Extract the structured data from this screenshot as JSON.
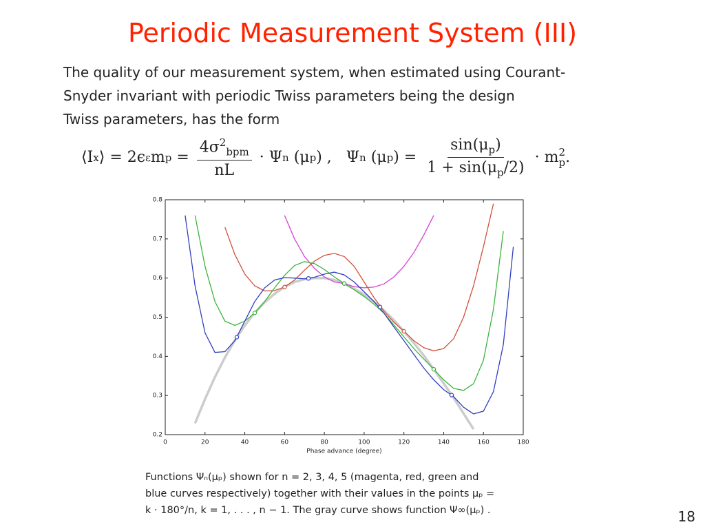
{
  "title": "Periodic Measurement System (III)",
  "paragraph": [
    "The quality of our measurement system, when estimated using Courant-",
    "Snyder invariant with periodic Twiss parameters being the design",
    "Twiss parameters, has the form"
  ],
  "formula": [
    "⟨I",
    "x",
    "⟩ = 2ϵ",
    "ε",
    "m",
    "p",
    " = ",
    "4σ",
    "2",
    "bpm",
    "nL",
    " · Ψ",
    "n",
    " (μ",
    "p",
    ") ,   Ψ",
    "n",
    " (μ",
    "p",
    ") = ",
    "sin(μ",
    "p",
    ")",
    "1 + sin(μ",
    "p",
    "/2)",
    " · m",
    "2",
    "p",
    "."
  ],
  "chart_data": {
    "type": "line",
    "xlabel": "Phase advance (degree)",
    "x": [
      0,
      5,
      10,
      15,
      20,
      25,
      30,
      35,
      40,
      45,
      50,
      55,
      60,
      65,
      70,
      75,
      80,
      85,
      90,
      95,
      100,
      105,
      110,
      115,
      120,
      125,
      130,
      135,
      140,
      145,
      150,
      155,
      160,
      165,
      170,
      175,
      180
    ],
    "xlim": [
      0,
      180
    ],
    "xticks": [
      0,
      20,
      40,
      60,
      80,
      100,
      120,
      140,
      160,
      180
    ],
    "ylim": [
      0.2,
      0.8
    ],
    "yticks": [
      0.2,
      0.3,
      0.4,
      0.5,
      0.6,
      0.7,
      0.8
    ],
    "limit_curve": {
      "color": "#cccccc",
      "values": [
        null,
        null,
        null,
        0.229,
        0.291,
        0.347,
        0.397,
        0.441,
        0.479,
        0.511,
        0.538,
        0.56,
        0.577,
        0.59,
        0.597,
        0.6,
        0.6,
        0.595,
        0.586,
        0.573,
        0.558,
        0.539,
        0.517,
        0.492,
        0.464,
        0.434,
        0.402,
        0.367,
        0.331,
        0.294,
        0.254,
        0.214,
        null,
        null,
        null,
        null,
        null
      ]
    },
    "series": [
      {
        "color": "#d63fd6",
        "values": [
          null,
          null,
          null,
          null,
          null,
          null,
          null,
          null,
          null,
          null,
          null,
          null,
          0.76,
          0.7,
          0.655,
          0.625,
          0.603,
          0.59,
          0.586,
          0.578,
          0.575,
          0.577,
          0.585,
          0.603,
          0.63,
          0.665,
          0.71,
          0.76,
          null,
          null,
          null,
          null,
          null,
          null,
          null,
          null,
          null
        ]
      },
      {
        "color": "#d0503a",
        "values": [
          null,
          null,
          null,
          null,
          null,
          null,
          0.73,
          0.66,
          0.61,
          0.58,
          0.567,
          0.568,
          0.577,
          0.595,
          0.62,
          0.643,
          0.658,
          0.663,
          0.655,
          0.63,
          0.59,
          0.55,
          0.515,
          0.487,
          0.464,
          0.44,
          0.422,
          0.414,
          0.42,
          0.445,
          0.5,
          0.58,
          0.68,
          0.79,
          null,
          null,
          null
        ]
      },
      {
        "color": "#3ab53a",
        "values": [
          null,
          null,
          null,
          0.76,
          0.63,
          0.54,
          0.49,
          0.479,
          0.49,
          0.511,
          0.54,
          0.575,
          0.607,
          0.632,
          0.642,
          0.637,
          0.622,
          0.603,
          0.586,
          0.57,
          0.553,
          0.533,
          0.51,
          0.48,
          0.45,
          0.42,
          0.393,
          0.367,
          0.34,
          0.318,
          0.313,
          0.33,
          0.39,
          0.52,
          0.72,
          null,
          null
        ]
      },
      {
        "color": "#2f3fbf",
        "values": [
          null,
          null,
          0.76,
          0.58,
          0.46,
          0.41,
          0.412,
          0.44,
          0.49,
          0.54,
          0.575,
          0.595,
          0.601,
          0.6,
          0.598,
          0.602,
          0.61,
          0.615,
          0.608,
          0.59,
          0.565,
          0.54,
          0.51,
          0.475,
          0.44,
          0.405,
          0.37,
          0.34,
          0.315,
          0.297,
          0.27,
          0.253,
          0.26,
          0.31,
          0.43,
          0.68,
          null
        ]
      }
    ],
    "markers": [
      {
        "color": "#d63fd6",
        "x": [
          90
        ],
        "values": [
          0.586
        ]
      },
      {
        "color": "#d0503a",
        "x": [
          60,
          120
        ],
        "values": [
          0.577,
          0.464
        ]
      },
      {
        "color": "#3ab53a",
        "x": [
          45,
          90,
          135
        ],
        "values": [
          0.511,
          0.586,
          0.367
        ]
      },
      {
        "color": "#2f3fbf",
        "x": [
          36,
          72,
          108,
          144
        ],
        "values": [
          0.449,
          0.599,
          0.526,
          0.301
        ]
      }
    ]
  },
  "caption": [
    "Functions  Ψₙ(μₚ)  shown for  n = 2, 3, 4, 5  (magenta, red, green and",
    "blue curves respectively) together with their values in the points  μₚ =",
    "k · 180°/n,  k = 1, . . . , n − 1.  The gray curve shows function  Ψ∞(μₚ) ."
  ],
  "page_number": "18"
}
